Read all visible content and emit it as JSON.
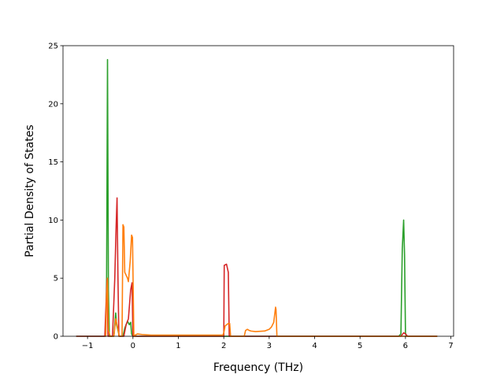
{
  "chart_data": {
    "type": "line",
    "title": "",
    "xlabel": "Frequency (THz)",
    "ylabel": "Partial Density of States",
    "xlim": [
      -1.54,
      7.06
    ],
    "ylim": [
      0,
      25
    ],
    "xticks": [
      -1,
      0,
      1,
      2,
      3,
      4,
      5,
      6,
      7
    ],
    "xtick_labels": [
      "−1",
      "0",
      "1",
      "2",
      "3",
      "4",
      "5",
      "6",
      "7"
    ],
    "yticks": [
      0,
      5,
      10,
      15,
      20,
      25
    ],
    "ytick_labels": [
      "0",
      "5",
      "10",
      "15",
      "20",
      "25"
    ],
    "grid": false,
    "legend": "none",
    "series": [
      {
        "color": "#2ca02c",
        "points": [
          [
            -1.25,
            0
          ],
          [
            -0.6,
            0
          ],
          [
            -0.58,
            5
          ],
          [
            -0.56,
            23.8
          ],
          [
            -0.54,
            4
          ],
          [
            -0.52,
            0
          ],
          [
            -0.42,
            0
          ],
          [
            -0.4,
            1
          ],
          [
            -0.38,
            2
          ],
          [
            -0.36,
            1
          ],
          [
            -0.3,
            0
          ],
          [
            -0.22,
            0
          ],
          [
            -0.18,
            0.7
          ],
          [
            -0.12,
            1.3
          ],
          [
            -0.08,
            1
          ],
          [
            -0.05,
            1.2
          ],
          [
            -0.03,
            0.2
          ],
          [
            0,
            0
          ],
          [
            5.85,
            0
          ],
          [
            5.9,
            0.2
          ],
          [
            5.93,
            7.5
          ],
          [
            5.96,
            10
          ],
          [
            5.98,
            7
          ],
          [
            6,
            0.3
          ],
          [
            6.02,
            0
          ],
          [
            6.7,
            0
          ]
        ]
      },
      {
        "color": "#d62728",
        "points": [
          [
            -1.25,
            0
          ],
          [
            -0.62,
            0
          ],
          [
            -0.59,
            3
          ],
          [
            -0.57,
            4.9
          ],
          [
            -0.55,
            0
          ],
          [
            -0.45,
            0
          ],
          [
            -0.42,
            3
          ],
          [
            -0.4,
            5
          ],
          [
            -0.37,
            9.5
          ],
          [
            -0.35,
            11.9
          ],
          [
            -0.33,
            5
          ],
          [
            -0.31,
            0
          ],
          [
            -0.2,
            0
          ],
          [
            -0.15,
            1
          ],
          [
            -0.1,
            1.5
          ],
          [
            -0.05,
            4
          ],
          [
            -0.02,
            4.6
          ],
          [
            0,
            0
          ],
          [
            2,
            0
          ],
          [
            2.01,
            6.1
          ],
          [
            2.06,
            6.2
          ],
          [
            2.1,
            5.5
          ],
          [
            2.12,
            0
          ],
          [
            5.9,
            0
          ],
          [
            5.96,
            0.3
          ],
          [
            6,
            0.2
          ],
          [
            6.05,
            0
          ],
          [
            6.7,
            0
          ]
        ]
      },
      {
        "color": "#ff7f0e",
        "points": [
          [
            -0.6,
            0
          ],
          [
            -0.58,
            3.5
          ],
          [
            -0.56,
            5
          ],
          [
            -0.54,
            0.5
          ],
          [
            -0.5,
            0
          ],
          [
            -0.42,
            0
          ],
          [
            -0.38,
            1.5
          ],
          [
            -0.34,
            0.8
          ],
          [
            -0.3,
            0
          ],
          [
            -0.24,
            0
          ],
          [
            -0.22,
            9.6
          ],
          [
            -0.2,
            9.4
          ],
          [
            -0.18,
            5.5
          ],
          [
            -0.12,
            5
          ],
          [
            -0.1,
            4.7
          ],
          [
            -0.06,
            6.5
          ],
          [
            -0.03,
            8.7
          ],
          [
            -0.01,
            8.5
          ],
          [
            0.02,
            0
          ],
          [
            0.05,
            0.1
          ],
          [
            0.1,
            0.2
          ],
          [
            0.2,
            0.15
          ],
          [
            0.4,
            0.1
          ],
          [
            1,
            0.1
          ],
          [
            1.5,
            0.1
          ],
          [
            1.98,
            0.1
          ],
          [
            2,
            0.3
          ],
          [
            2.03,
            0.9
          ],
          [
            2.1,
            1.1
          ],
          [
            2.13,
            1.1
          ],
          [
            2.15,
            0
          ],
          [
            2.45,
            0
          ],
          [
            2.48,
            0.5
          ],
          [
            2.52,
            0.6
          ],
          [
            2.56,
            0.5
          ],
          [
            2.6,
            0.45
          ],
          [
            2.7,
            0.4
          ],
          [
            2.9,
            0.45
          ],
          [
            3.0,
            0.6
          ],
          [
            3.05,
            0.8
          ],
          [
            3.1,
            1.2
          ],
          [
            3.14,
            2.5
          ],
          [
            3.15,
            2.3
          ],
          [
            3.17,
            0
          ],
          [
            6.7,
            0
          ]
        ]
      }
    ]
  }
}
